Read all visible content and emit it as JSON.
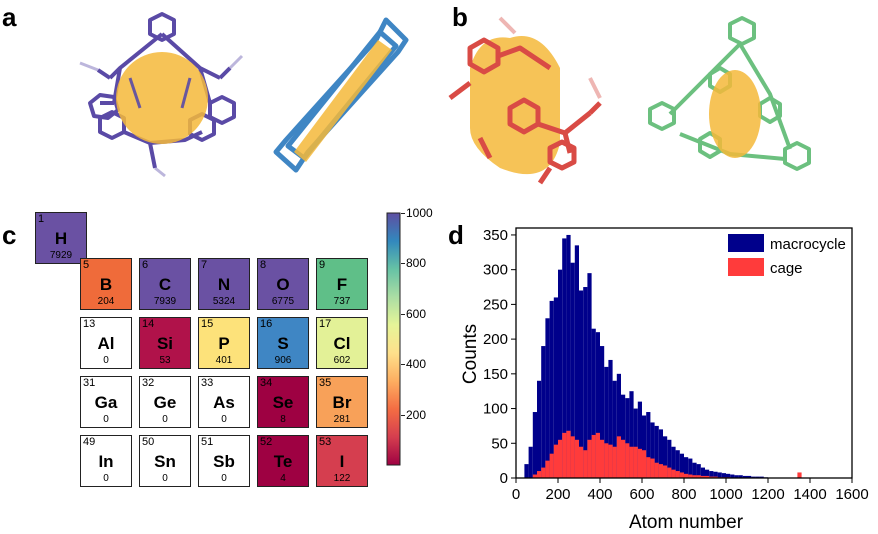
{
  "panels": {
    "a": "a",
    "b": "b",
    "c": "c",
    "d": "d"
  },
  "molecules": [
    {
      "name": "purple-cage",
      "color": "#5a4aa6"
    },
    {
      "name": "blue-macrocycle",
      "color": "#3f86c4"
    },
    {
      "name": "red-cage",
      "color": "#d94b45"
    },
    {
      "name": "green-macrocycle",
      "color": "#6cc07f"
    }
  ],
  "cavity_color": "#f5b83a",
  "periodic_table": {
    "elements": [
      {
        "number": "1",
        "symbol": "H",
        "count": "7929",
        "color": "#6a51a3"
      },
      {
        "number": "5",
        "symbol": "B",
        "count": "204",
        "color": "#ef6b3a"
      },
      {
        "number": "6",
        "symbol": "C",
        "count": "7939",
        "color": "#6a51a3"
      },
      {
        "number": "7",
        "symbol": "N",
        "count": "5324",
        "color": "#6a51a3"
      },
      {
        "number": "8",
        "symbol": "O",
        "count": "6775",
        "color": "#6a51a3"
      },
      {
        "number": "9",
        "symbol": "F",
        "count": "737",
        "color": "#5fbf88"
      },
      {
        "number": "13",
        "symbol": "Al",
        "count": "0",
        "color": "#ffffff"
      },
      {
        "number": "14",
        "symbol": "Si",
        "count": "53",
        "color": "#b0124a"
      },
      {
        "number": "15",
        "symbol": "P",
        "count": "401",
        "color": "#fde27a"
      },
      {
        "number": "16",
        "symbol": "S",
        "count": "906",
        "color": "#3f86c4"
      },
      {
        "number": "17",
        "symbol": "Cl",
        "count": "602",
        "color": "#e3f197"
      },
      {
        "number": "31",
        "symbol": "Ga",
        "count": "0",
        "color": "#ffffff"
      },
      {
        "number": "32",
        "symbol": "Ge",
        "count": "0",
        "color": "#ffffff"
      },
      {
        "number": "33",
        "symbol": "As",
        "count": "0",
        "color": "#ffffff"
      },
      {
        "number": "34",
        "symbol": "Se",
        "count": "8",
        "color": "#9e0142"
      },
      {
        "number": "35",
        "symbol": "Br",
        "count": "281",
        "color": "#f8a159"
      },
      {
        "number": "49",
        "symbol": "In",
        "count": "0",
        "color": "#ffffff"
      },
      {
        "number": "50",
        "symbol": "Sn",
        "count": "0",
        "color": "#ffffff"
      },
      {
        "number": "51",
        "symbol": "Sb",
        "count": "0",
        "color": "#ffffff"
      },
      {
        "number": "52",
        "symbol": "Te",
        "count": "4",
        "color": "#9e0142"
      },
      {
        "number": "53",
        "symbol": "I",
        "count": "122",
        "color": "#d53e4f"
      }
    ],
    "colorbar": {
      "ticks": [
        "1000",
        "800",
        "600",
        "400",
        "200"
      ],
      "range": [
        0,
        1000
      ],
      "stops": [
        "#9e0142",
        "#d53e4f",
        "#f46d43",
        "#fdae61",
        "#fee08b",
        "#e6f598",
        "#abdda4",
        "#66c2a5",
        "#3288bd",
        "#5e4fa2"
      ]
    }
  },
  "chart_data": {
    "type": "bar",
    "xlabel": "Atom number",
    "ylabel": "Counts",
    "xlim": [
      0,
      1600
    ],
    "ylim": [
      0,
      360
    ],
    "xticks": [
      "0",
      "200",
      "400",
      "600",
      "800",
      "1000",
      "1200",
      "1400",
      "1600"
    ],
    "yticks": [
      "0",
      "50",
      "100",
      "150",
      "200",
      "250",
      "300",
      "350"
    ],
    "bin_width": 20,
    "legend_position": "top-right",
    "series": [
      {
        "name": "macrocycle",
        "color": "#00008b",
        "x": [
          50,
          70,
          90,
          110,
          130,
          150,
          170,
          190,
          210,
          230,
          250,
          270,
          290,
          310,
          330,
          350,
          370,
          390,
          410,
          430,
          450,
          470,
          490,
          510,
          530,
          550,
          570,
          590,
          610,
          630,
          650,
          670,
          690,
          710,
          730,
          750,
          770,
          790,
          810,
          830,
          850,
          870,
          890,
          910,
          930,
          950,
          970,
          990,
          1010,
          1030,
          1050,
          1070,
          1090,
          1110,
          1130,
          1150,
          1170,
          1190
        ],
        "values": [
          20,
          45,
          95,
          140,
          190,
          230,
          255,
          260,
          300,
          345,
          350,
          310,
          335,
          270,
          275,
          295,
          215,
          210,
          190,
          160,
          170,
          140,
          150,
          120,
          115,
          125,
          100,
          110,
          90,
          95,
          80,
          75,
          70,
          60,
          55,
          45,
          40,
          35,
          30,
          28,
          22,
          20,
          15,
          12,
          10,
          9,
          8,
          7,
          6,
          5,
          4,
          4,
          3,
          3,
          2,
          2,
          2,
          1
        ]
      },
      {
        "name": "cage",
        "color": "#ff3b3b",
        "x": [
          90,
          110,
          130,
          150,
          170,
          190,
          210,
          230,
          250,
          270,
          290,
          310,
          330,
          350,
          370,
          390,
          410,
          430,
          450,
          470,
          490,
          510,
          530,
          550,
          570,
          590,
          610,
          630,
          650,
          670,
          690,
          710,
          730,
          750,
          770,
          790,
          810,
          830,
          850,
          870,
          890,
          910,
          930,
          950,
          970,
          990,
          1010,
          1350
        ],
        "values": [
          5,
          10,
          15,
          25,
          35,
          48,
          55,
          65,
          68,
          60,
          55,
          45,
          40,
          55,
          62,
          65,
          55,
          50,
          48,
          45,
          60,
          55,
          50,
          45,
          45,
          42,
          40,
          30,
          28,
          22,
          20,
          18,
          15,
          12,
          10,
          8,
          6,
          5,
          4,
          4,
          3,
          3,
          2,
          2,
          1,
          1,
          1,
          8
        ]
      }
    ]
  }
}
